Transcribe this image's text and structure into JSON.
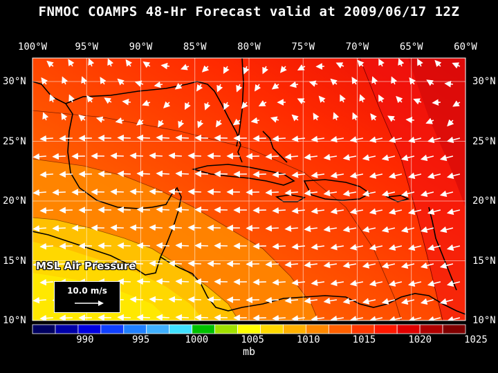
{
  "title": "FNMOC COAMPS 48-Hr Forecast valid at 2009/06/17 12Z",
  "lon_labels": [
    "100°W",
    "95°W",
    "90°W",
    "85°W",
    "80°W",
    "75°W",
    "70°W",
    "65°W",
    "60°W"
  ],
  "lat_labels": [
    "30°N",
    "25°N",
    "20°N",
    "15°N",
    "10°N"
  ],
  "variable_label": "MSL Air Pressure",
  "reference_vector": {
    "label": "10.0 m/s",
    "speed_ms": 10.0
  },
  "colorbar": {
    "tick_labels": [
      "990",
      "995",
      "1000",
      "1005",
      "1010",
      "1015",
      "1020",
      "1025"
    ],
    "units": "mb",
    "colors": [
      "#000060",
      "#0000a8",
      "#0000e0",
      "#1040ff",
      "#2080ff",
      "#40b0ff",
      "#40e0ff",
      "#00c000",
      "#a0e000",
      "#ffff00",
      "#ffd800",
      "#ffb000",
      "#ff8800",
      "#ff6000",
      "#ff3800",
      "#ff1800",
      "#e00000",
      "#b00000",
      "#800000"
    ]
  },
  "icons": {
    "wind_vectors": "wind-arrow-icon"
  }
}
